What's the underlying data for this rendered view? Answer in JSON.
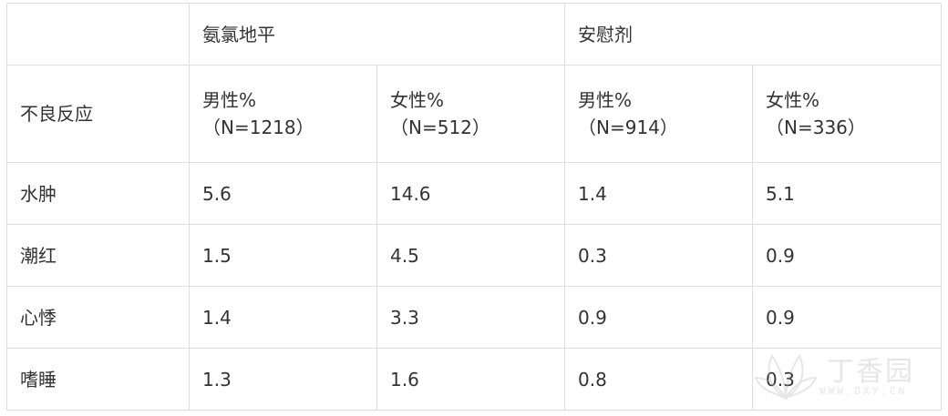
{
  "table": {
    "group_headers": {
      "drug": "氨氯地平",
      "placebo": "安慰剂"
    },
    "row_header_label": "不良反应",
    "sub_headers": [
      {
        "label": "男性%",
        "n": "（N=1218）"
      },
      {
        "label": "女性%",
        "n": "（N=512）"
      },
      {
        "label": "男性%",
        "n": "（N=914）"
      },
      {
        "label": "女性%",
        "n": "（N=336）"
      }
    ],
    "rows": [
      {
        "name": "水肿",
        "values": [
          "5.6",
          "14.6",
          "1.4",
          "5.1"
        ]
      },
      {
        "name": "潮红",
        "values": [
          "1.5",
          "4.5",
          "0.3",
          "0.9"
        ]
      },
      {
        "name": "心悸",
        "values": [
          "1.4",
          "3.3",
          "0.9",
          "0.9"
        ]
      },
      {
        "name": "嗜睡",
        "values": [
          "1.3",
          "1.6",
          "0.8",
          "0.3"
        ]
      }
    ]
  },
  "watermark": {
    "brand": "丁香园",
    "url": "WWW.DXY.CN",
    "icon": "lotus-logo-icon"
  }
}
